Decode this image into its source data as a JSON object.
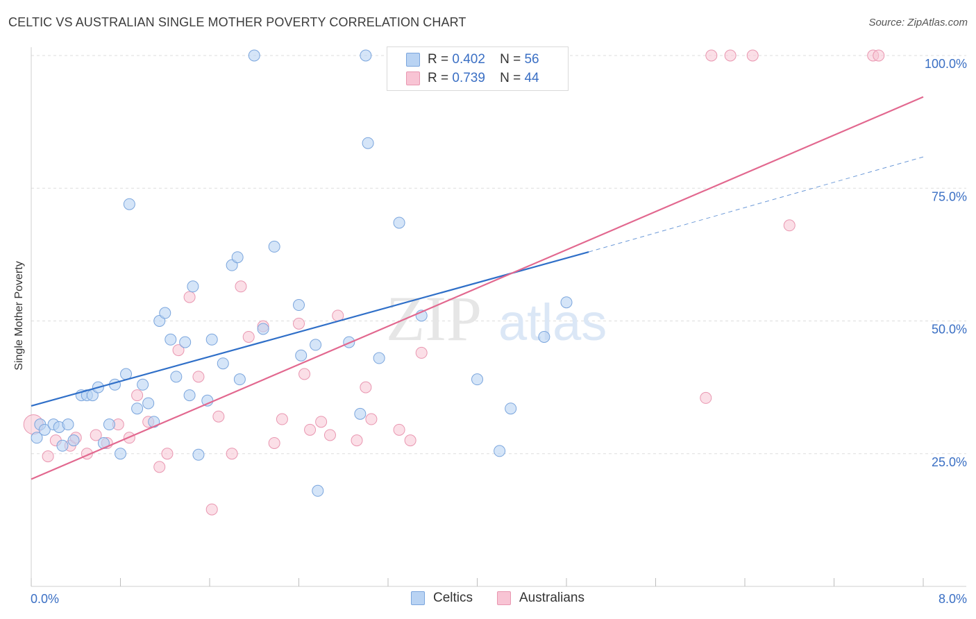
{
  "header": {
    "title": "CELTIC VS AUSTRALIAN SINGLE MOTHER POVERTY CORRELATION CHART",
    "source": "Source: ZipAtlas.com"
  },
  "watermark": {
    "zip": "ZIP",
    "atlas": "atlas"
  },
  "legend": {
    "celtics": {
      "r_label": "R =",
      "r_value": "0.402",
      "n_label": "N =",
      "n_value": "56"
    },
    "australians": {
      "r_label": "R =",
      "r_value": "0.739",
      "n_label": "N =",
      "n_value": "44"
    }
  },
  "colors": {
    "celtics_fill": "#b9d3f3",
    "celtics_stroke": "#7aa5dd",
    "celtics_line": "#2f6fc8",
    "australians_fill": "#f8c4d4",
    "australians_stroke": "#e996b0",
    "australians_line": "#e2688f",
    "tick_label": "#3a6fc4",
    "grid": "#dddddd"
  },
  "chart_data": {
    "type": "scatter",
    "title": "CELTIC VS AUSTRALIAN SINGLE MOTHER POVERTY CORRELATION CHART",
    "xlabel": "",
    "ylabel": "Single Mother Poverty",
    "xlim": [
      0,
      8
    ],
    "ylim": [
      0,
      100
    ],
    "x_tick_labels": [
      "0.0%",
      "8.0%"
    ],
    "y_ticks": [
      25,
      50,
      75,
      100
    ],
    "y_tick_labels": [
      "25.0%",
      "50.0%",
      "75.0%",
      "100.0%"
    ],
    "grid": true,
    "legend_position": "top-center",
    "series": [
      {
        "name": "Celtics",
        "r": 0.402,
        "n": 56,
        "trend": {
          "x": [
            0,
            5.0
          ],
          "y": [
            34.0,
            63.0
          ],
          "dashed_to": [
            8.0,
            80.9
          ]
        },
        "points": [
          [
            0.05,
            28
          ],
          [
            0.08,
            30.5
          ],
          [
            0.12,
            29.5
          ],
          [
            0.2,
            30.5
          ],
          [
            0.25,
            30
          ],
          [
            0.33,
            30.5
          ],
          [
            0.28,
            26.5
          ],
          [
            0.38,
            27.5
          ],
          [
            0.45,
            36
          ],
          [
            0.5,
            36
          ],
          [
            0.55,
            36
          ],
          [
            0.6,
            37.5
          ],
          [
            0.65,
            27
          ],
          [
            0.7,
            30.5
          ],
          [
            0.75,
            38
          ],
          [
            0.8,
            25
          ],
          [
            0.85,
            40
          ],
          [
            0.88,
            72
          ],
          [
            0.95,
            33.5
          ],
          [
            1.0,
            38
          ],
          [
            1.05,
            34.5
          ],
          [
            1.1,
            31
          ],
          [
            1.15,
            50
          ],
          [
            1.2,
            51.5
          ],
          [
            1.25,
            46.5
          ],
          [
            1.3,
            39.5
          ],
          [
            1.38,
            46
          ],
          [
            1.42,
            36
          ],
          [
            1.45,
            56.5
          ],
          [
            1.5,
            24.8
          ],
          [
            1.58,
            35
          ],
          [
            1.62,
            46.5
          ],
          [
            1.72,
            42
          ],
          [
            1.8,
            60.5
          ],
          [
            1.85,
            62
          ],
          [
            1.87,
            39
          ],
          [
            2.0,
            100
          ],
          [
            2.08,
            48.5
          ],
          [
            2.18,
            64
          ],
          [
            2.4,
            53
          ],
          [
            2.42,
            43.5
          ],
          [
            2.55,
            45.5
          ],
          [
            2.57,
            18
          ],
          [
            2.85,
            46
          ],
          [
            2.95,
            32.5
          ],
          [
            3.0,
            100
          ],
          [
            3.02,
            83.5
          ],
          [
            3.12,
            43
          ],
          [
            3.3,
            68.5
          ],
          [
            3.5,
            51
          ],
          [
            3.9,
            100
          ],
          [
            4.0,
            39
          ],
          [
            4.2,
            25.5
          ],
          [
            4.3,
            33.5
          ],
          [
            4.6,
            47
          ],
          [
            4.8,
            53.5
          ]
        ]
      },
      {
        "name": "Australians",
        "r": 0.739,
        "n": 44,
        "trend": {
          "x": [
            0,
            8.0
          ],
          "y": [
            20.2,
            92.2
          ]
        },
        "points": [
          [
            0.02,
            30.5
          ],
          [
            0.15,
            24.5
          ],
          [
            0.22,
            27.5
          ],
          [
            0.35,
            26.5
          ],
          [
            0.4,
            28
          ],
          [
            0.5,
            25
          ],
          [
            0.58,
            28.5
          ],
          [
            0.68,
            27
          ],
          [
            0.78,
            30.5
          ],
          [
            0.88,
            28
          ],
          [
            0.95,
            36
          ],
          [
            1.05,
            31
          ],
          [
            1.15,
            22.5
          ],
          [
            1.22,
            25
          ],
          [
            1.32,
            44.5
          ],
          [
            1.42,
            54.5
          ],
          [
            1.5,
            39.5
          ],
          [
            1.68,
            32
          ],
          [
            1.8,
            25
          ],
          [
            1.88,
            56.5
          ],
          [
            1.95,
            47
          ],
          [
            2.08,
            49
          ],
          [
            2.18,
            27
          ],
          [
            2.25,
            31.5
          ],
          [
            2.4,
            49.5
          ],
          [
            2.45,
            40
          ],
          [
            2.5,
            29.5
          ],
          [
            2.6,
            31
          ],
          [
            2.68,
            28.5
          ],
          [
            2.75,
            51
          ],
          [
            2.92,
            27.5
          ],
          [
            3.0,
            37.5
          ],
          [
            3.05,
            31.5
          ],
          [
            3.3,
            29.5
          ],
          [
            3.4,
            27.5
          ],
          [
            3.5,
            44
          ],
          [
            1.62,
            14.5
          ],
          [
            6.05,
            35.5
          ],
          [
            6.1,
            100
          ],
          [
            6.27,
            100
          ],
          [
            6.47,
            100
          ],
          [
            6.8,
            68
          ],
          [
            7.55,
            100
          ],
          [
            7.6,
            100
          ]
        ]
      }
    ]
  },
  "bottom_legend": {
    "celtics": "Celtics",
    "australians": "Australians"
  }
}
